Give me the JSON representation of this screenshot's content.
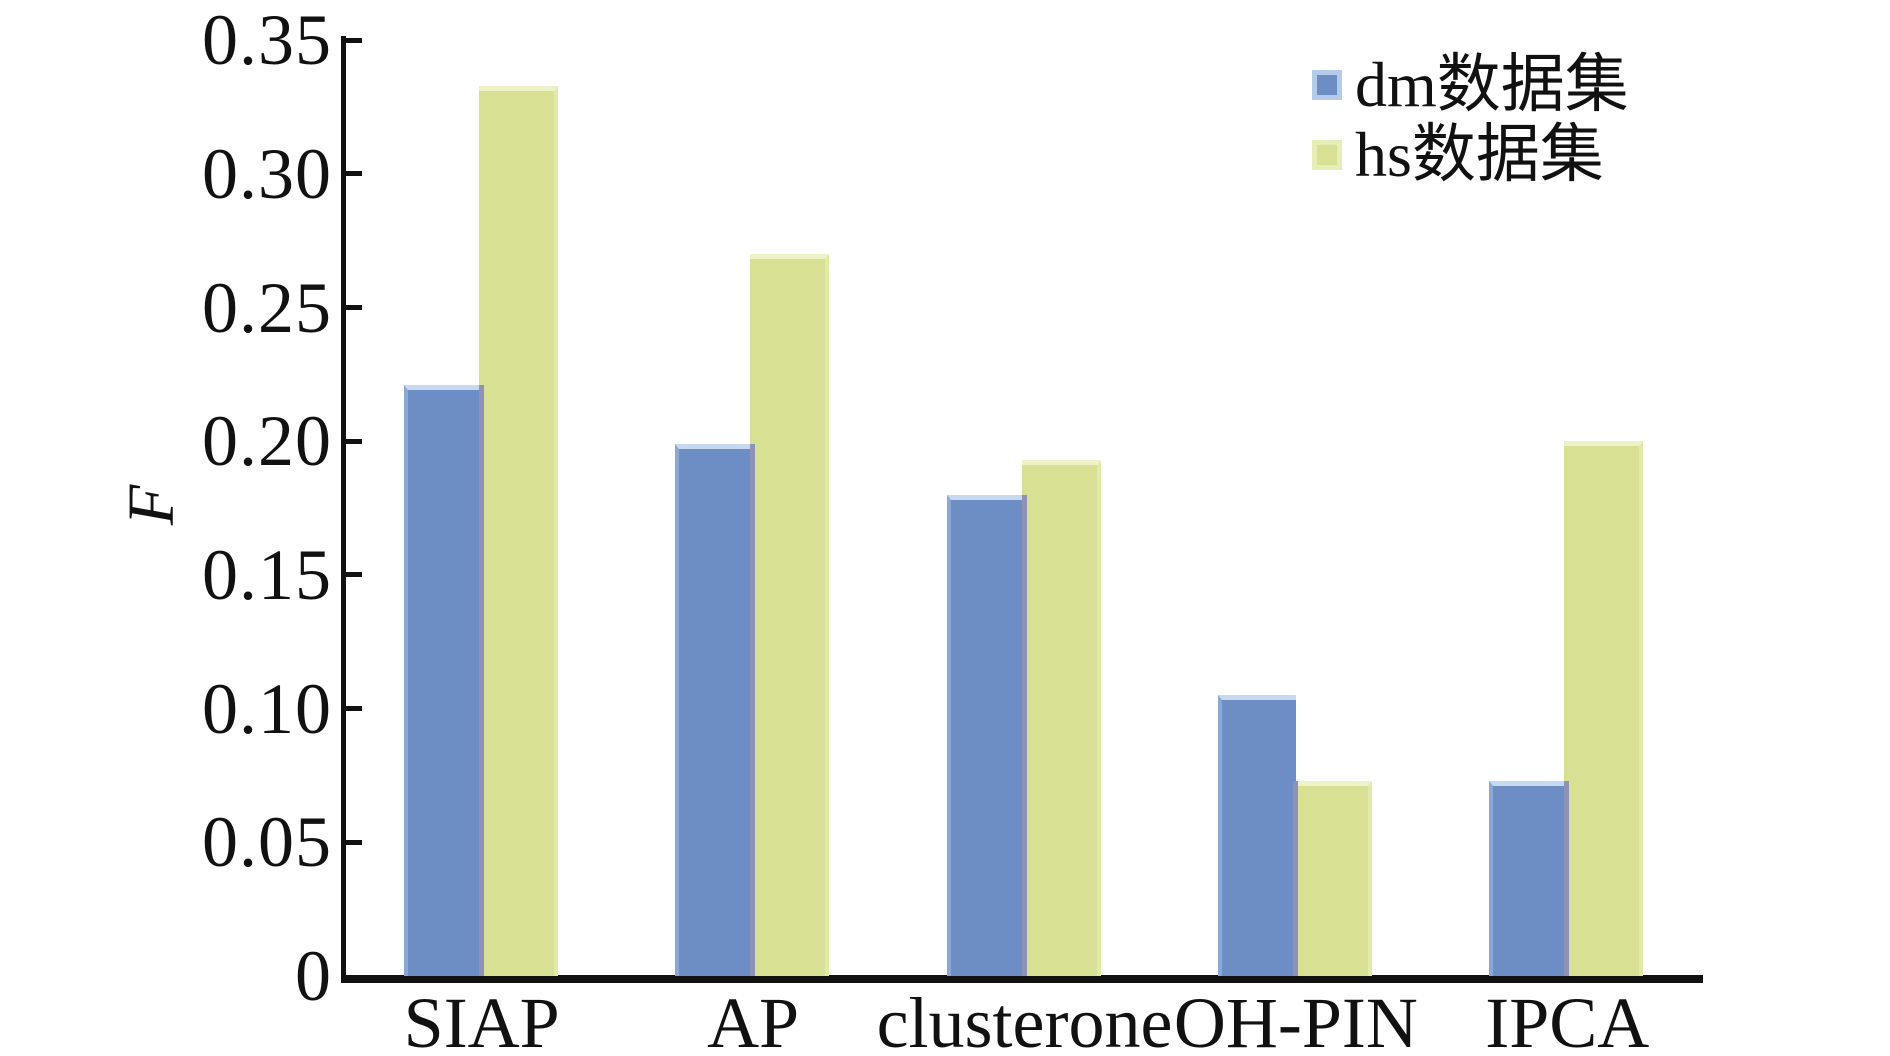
{
  "figure": {
    "background": "#ffffff",
    "axis_color": "#111111"
  },
  "chart_data": {
    "type": "bar",
    "title": "",
    "xlabel": "",
    "ylabel": "F",
    "categories": [
      "SIAP",
      "AP",
      "clusterone",
      "OH-PIN",
      "IPCA"
    ],
    "series": [
      {
        "name": "dm数据集",
        "color": "#6c8ec4",
        "edge_highlight": "#c6d9f0",
        "legend_border": "#b5cbe9",
        "values": [
          0.221,
          0.199,
          0.18,
          0.105,
          0.073
        ]
      },
      {
        "name": "hs数据集",
        "color": "#d8e193",
        "edge_highlight": "#eef2c6",
        "legend_border": "#e6edb6",
        "values": [
          0.333,
          0.27,
          0.193,
          0.073,
          0.2
        ]
      }
    ],
    "overlap_color": "#8f92b5",
    "ylim": [
      0,
      0.35
    ],
    "yticks": [
      {
        "value": 0.35,
        "label": "0.35"
      },
      {
        "value": 0.3,
        "label": "0.30"
      },
      {
        "value": 0.25,
        "label": "0.25"
      },
      {
        "value": 0.2,
        "label": "0.20"
      },
      {
        "value": 0.15,
        "label": "0.15"
      },
      {
        "value": 0.1,
        "label": "0.10"
      },
      {
        "value": 0.05,
        "label": "0.05"
      },
      {
        "value": 0,
        "label": "0"
      }
    ],
    "grid": false,
    "legend_position": "top-right"
  }
}
